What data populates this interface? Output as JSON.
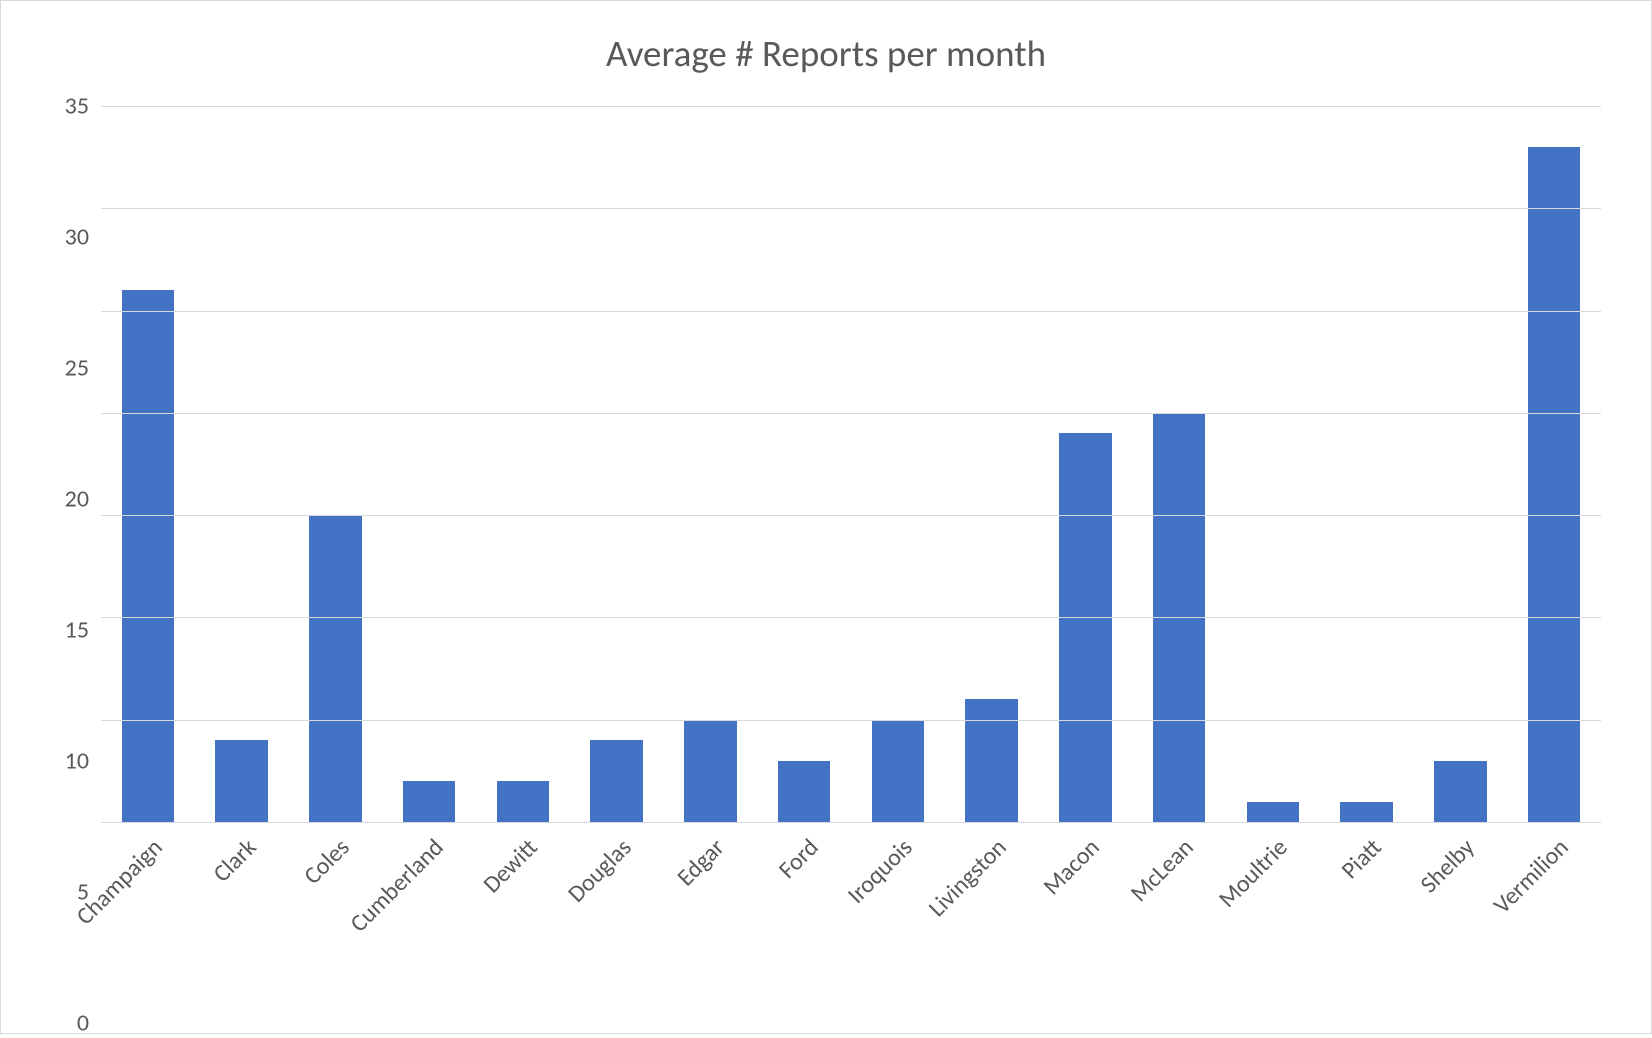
{
  "chart": {
    "type": "bar",
    "title": "Average # Reports per month",
    "title_fontsize": 37,
    "title_color": "#595959",
    "categories": [
      "Champaign",
      "Clark",
      "Coles",
      "Cumberland",
      "Dewitt",
      "Douglas",
      "Edgar",
      "Ford",
      "Iroquois",
      "Livingston",
      "Macon",
      "McLean",
      "Moultrie",
      "Piatt",
      "Shelby",
      "Vermilion"
    ],
    "values": [
      26,
      4,
      15,
      2,
      2,
      4,
      5,
      3,
      5,
      6,
      19,
      20,
      1,
      1,
      3,
      33
    ],
    "bar_color": "#4472c4",
    "bar_width_pct": 56,
    "ylim": [
      0,
      35
    ],
    "ytick_step": 5,
    "yticks": [
      0,
      5,
      10,
      15,
      20,
      25,
      30,
      35
    ],
    "axis_label_fontsize": 24,
    "axis_label_color": "#595959",
    "grid_color": "#d9d9d9",
    "background_color": "#ffffff",
    "border_color": "#d9d9d9",
    "x_label_rotation_deg": -45
  }
}
